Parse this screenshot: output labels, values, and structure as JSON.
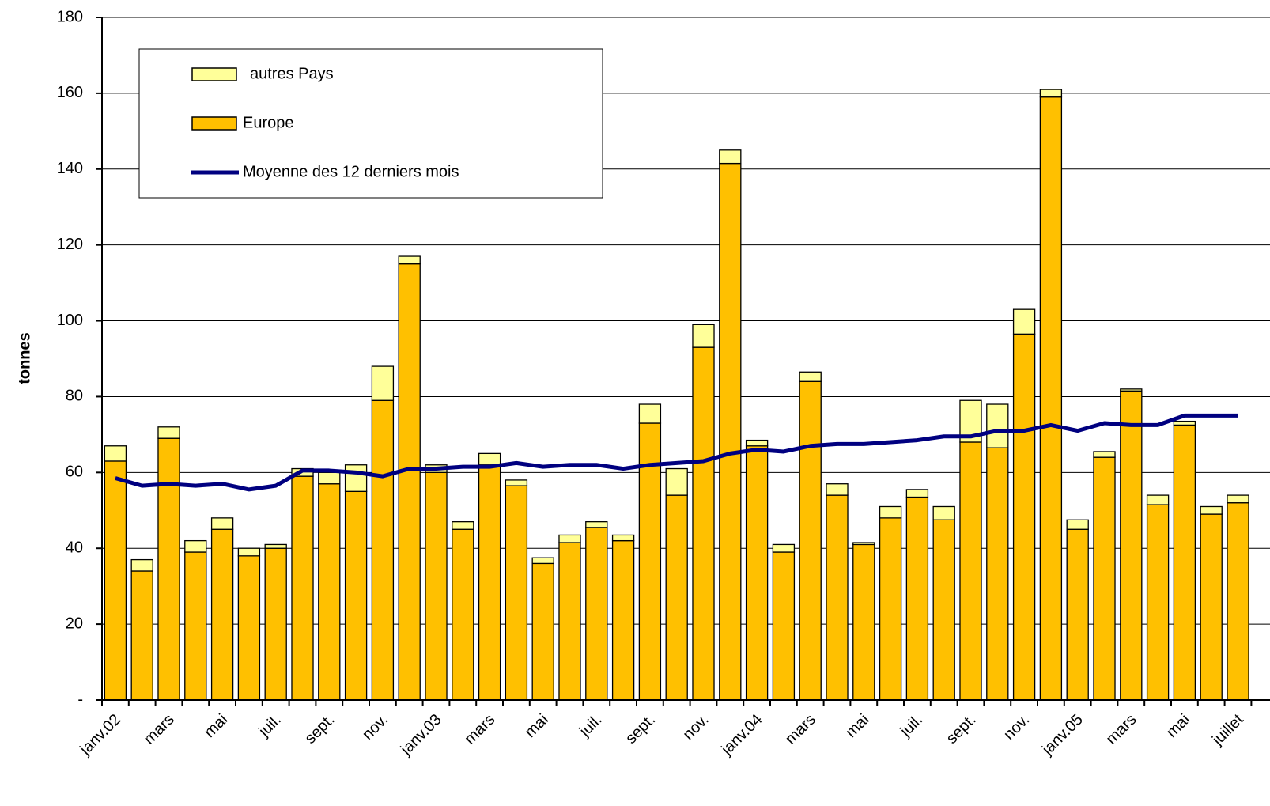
{
  "chart_data": {
    "type": "bar",
    "ylabel": "tonnes",
    "categories": [
      "janv.02",
      null,
      "mars",
      null,
      "mai",
      null,
      "juil.",
      null,
      "sept.",
      null,
      "nov.",
      null,
      "janv.03",
      null,
      "mars",
      null,
      "mai",
      null,
      "juil.",
      null,
      "sept.",
      null,
      "nov.",
      null,
      "janv.04",
      null,
      "mars",
      null,
      "mai",
      null,
      "juil.",
      null,
      "sept.",
      null,
      "nov.",
      null,
      "janv.05",
      null,
      "mars",
      null,
      "mai",
      null,
      "juillet"
    ],
    "series": [
      {
        "name": "Europe",
        "color": "#FFC000",
        "values": [
          63,
          34,
          69,
          39,
          45,
          38,
          40,
          59,
          57,
          55,
          79,
          115,
          60,
          45,
          62,
          56.5,
          36,
          41.5,
          45.5,
          42,
          73,
          54,
          93,
          141.5,
          67,
          39,
          84,
          54,
          41,
          48,
          53.5,
          47.5,
          68,
          66.5,
          96.5,
          159,
          45,
          64,
          81.5,
          51.5,
          72.5,
          49,
          52
        ]
      },
      {
        "name": "autres Pays",
        "color": "#FFFF99",
        "values": [
          4,
          3,
          3,
          3,
          3,
          2,
          1,
          2,
          3,
          7,
          9,
          2,
          2,
          2,
          3,
          1.5,
          1.5,
          2,
          1.5,
          1.5,
          5,
          7,
          6,
          3.5,
          1.5,
          2,
          2.5,
          3,
          0.5,
          3,
          2,
          3.5,
          11,
          11.5,
          6.5,
          2,
          2.5,
          1.5,
          0.5,
          2.5,
          1,
          2,
          2
        ]
      },
      {
        "name": "Moyenne des 12 derniers mois",
        "color": "#000080",
        "type": "line",
        "values": [
          58.5,
          56.5,
          57,
          56.5,
          57,
          55.5,
          56.5,
          60.5,
          60.5,
          60,
          59,
          61,
          61,
          61.5,
          61.5,
          62.5,
          61.5,
          62,
          62,
          61,
          62,
          62.5,
          63,
          65,
          66,
          65.5,
          67,
          67.5,
          67.5,
          68,
          68.5,
          69.5,
          69.5,
          71,
          71,
          72.5,
          71,
          73,
          72.5,
          72.5,
          75,
          75,
          75
        ]
      }
    ],
    "stacked": true,
    "ylim": [
      0,
      180
    ],
    "yticks": [
      {
        "value": 0,
        "label": "-"
      },
      20,
      40,
      60,
      80,
      100,
      120,
      140,
      160,
      180
    ],
    "grid": true
  }
}
